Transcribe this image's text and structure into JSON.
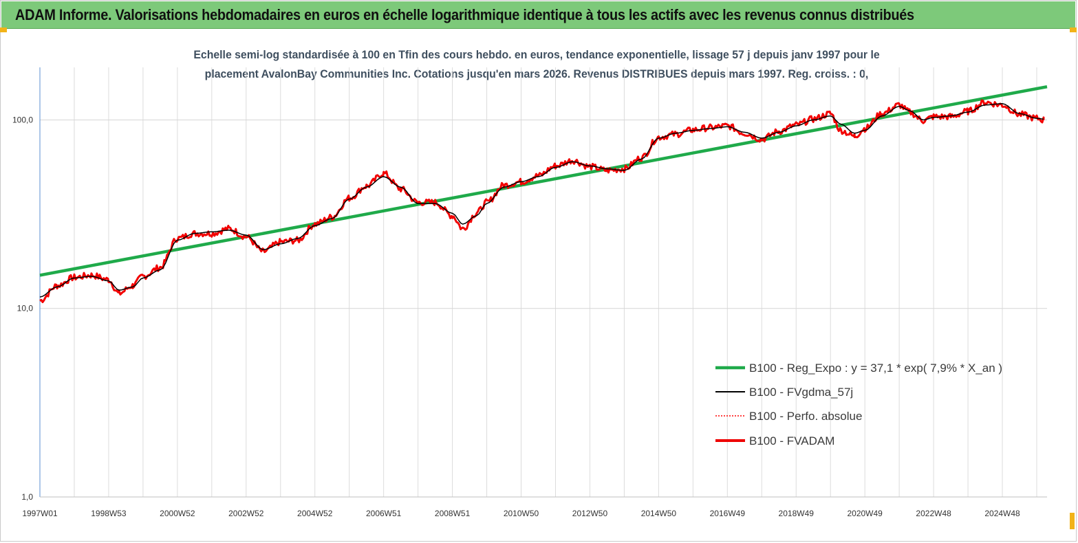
{
  "banner": {
    "title": "ADAM Informe. Valorisations hebdomadaires en euros en échelle logarithmique identique à tous les actifs avec les revenus connus distribués",
    "color": "#7dc97a"
  },
  "chart_data": {
    "type": "line",
    "title_line1": "Echelle semi-log standardisée à 100 en Tfin des cours hebdo. en euros, tendance exponentielle, lissage 57 j depuis janv 1997 pour le",
    "title_line2": "placement AvalonBay Communities Inc. Cotations jusqu'en mars 2026. Revenus DISTRIBUES depuis mars 1997. Reg. croiss. : 0,",
    "yscale": "log",
    "ylim": [
      1,
      190
    ],
    "y_ticks": [
      1,
      10,
      100
    ],
    "y_tick_labels": [
      "1,0",
      "10,0",
      "100,0"
    ],
    "xlim": [
      1997.0,
      2026.3
    ],
    "x_ticks": [
      1997.0,
      1999.0,
      2001.0,
      2003.0,
      2005.0,
      2007.0,
      2009.0,
      2011.0,
      2013.0,
      2015.0,
      2017.0,
      2019.0,
      2021.0,
      2023.0,
      2025.0
    ],
    "x_tick_labels": [
      "1997W01",
      "1998W53",
      "2000W52",
      "2002W52",
      "2004W52",
      "2006W51",
      "2008W51",
      "2010W50",
      "2012W50",
      "2014W50",
      "2016W49",
      "2018W49",
      "2020W49",
      "2022W48",
      "2024W48"
    ],
    "grid": true,
    "legend_position": "bottom-right",
    "series": [
      {
        "name": "B100 - Reg_Expo : y = 37,1 *  exp( 7,9% *  X_an )",
        "color": "#1faa4a",
        "style": "thick",
        "x": [
          1997.0,
          2026.3
        ],
        "values": [
          15.0,
          150.0
        ]
      },
      {
        "name": "B100 - FVgdma_57j",
        "color": "#000000",
        "style": "thin",
        "x": [
          1997.0,
          1997.5,
          1998.0,
          1998.5,
          1999.0,
          1999.3,
          1999.7,
          2000.0,
          2000.5,
          2001.0,
          2001.5,
          2002.0,
          2002.5,
          2003.0,
          2003.5,
          2004.0,
          2004.5,
          2005.0,
          2005.5,
          2006.0,
          2006.5,
          2007.0,
          2007.5,
          2008.0,
          2008.5,
          2009.0,
          2009.3,
          2009.7,
          2010.0,
          2010.5,
          2011.0,
          2011.5,
          2012.0,
          2012.5,
          2013.0,
          2013.5,
          2014.0,
          2014.5,
          2015.0,
          2015.5,
          2016.0,
          2016.5,
          2017.0,
          2017.5,
          2018.0,
          2018.5,
          2019.0,
          2019.5,
          2020.0,
          2020.3,
          2020.7,
          2021.0,
          2021.5,
          2022.0,
          2022.3,
          2022.7,
          2023.0,
          2023.5,
          2024.0,
          2024.5,
          2025.0,
          2025.5,
          2026.0,
          2026.2
        ],
        "values": [
          11.5,
          13.0,
          14.5,
          14.8,
          14.0,
          12.5,
          13.0,
          14.5,
          16.0,
          23.0,
          25.0,
          25.5,
          26.0,
          24.5,
          20.5,
          22.0,
          23.5,
          27.5,
          30.0,
          38.0,
          44.0,
          50.0,
          44.0,
          36.0,
          36.0,
          32.0,
          28.0,
          31.0,
          36.0,
          44.0,
          47.0,
          50.0,
          56.0,
          60.0,
          57.0,
          55.0,
          54.0,
          62.0,
          80.0,
          85.0,
          88.0,
          90.0,
          92.0,
          86.0,
          80.0,
          86.0,
          93.0,
          100.0,
          105.0,
          95.0,
          85.0,
          88.0,
          105.0,
          118.0,
          112.0,
          100.0,
          103.0,
          105.0,
          110.0,
          120.0,
          122.0,
          108.0,
          102.0,
          101.0
        ]
      },
      {
        "name": "B100 - Perfo. absolue",
        "color": "#ff0000",
        "style": "dotted",
        "x": [
          1997.0,
          1997.5,
          1998.0,
          1998.5,
          1999.0,
          1999.3,
          1999.7,
          2000.0,
          2000.5,
          2001.0,
          2001.5,
          2002.0,
          2002.5,
          2003.0,
          2003.5,
          2004.0,
          2004.5,
          2005.0,
          2005.5,
          2006.0,
          2006.5,
          2007.0,
          2007.5,
          2008.0,
          2008.5,
          2009.0,
          2009.3,
          2009.7,
          2010.0,
          2010.5,
          2011.0,
          2011.5,
          2012.0,
          2012.5,
          2013.0,
          2013.5,
          2014.0,
          2014.5,
          2015.0,
          2015.5,
          2016.0,
          2016.5,
          2017.0,
          2017.5,
          2018.0,
          2018.5,
          2019.0,
          2019.5,
          2020.0,
          2020.3,
          2020.7,
          2021.0,
          2021.5,
          2022.0,
          2022.3,
          2022.7,
          2023.0,
          2023.5,
          2024.0,
          2024.5,
          2025.0,
          2025.5,
          2026.0,
          2026.2
        ],
        "values": [
          11.0,
          13.2,
          14.6,
          15.0,
          14.2,
          12.0,
          13.2,
          14.8,
          16.5,
          23.5,
          25.0,
          25.0,
          26.5,
          24.0,
          20.0,
          22.5,
          23.0,
          28.0,
          30.5,
          38.5,
          44.5,
          52.0,
          43.0,
          36.5,
          36.5,
          31.0,
          26.5,
          32.0,
          36.5,
          45.0,
          47.0,
          50.5,
          57.0,
          61.0,
          56.5,
          54.0,
          55.0,
          63.0,
          81.0,
          84.0,
          88.5,
          91.0,
          93.0,
          85.0,
          79.0,
          87.0,
          94.0,
          101.0,
          108.0,
          88.0,
          82.0,
          90.0,
          108.0,
          120.0,
          110.0,
          99.0,
          104.0,
          104.0,
          111.0,
          124.0,
          120.0,
          107.0,
          102.0,
          100.0
        ]
      },
      {
        "name": "B100 - FVADAM",
        "color": "#ee0000",
        "style": "thick",
        "x": [
          1997.0,
          1997.5,
          1998.0,
          1998.5,
          1999.0,
          1999.3,
          1999.7,
          2000.0,
          2000.5,
          2001.0,
          2001.5,
          2002.0,
          2002.5,
          2003.0,
          2003.5,
          2004.0,
          2004.5,
          2005.0,
          2005.5,
          2006.0,
          2006.5,
          2007.0,
          2007.5,
          2008.0,
          2008.5,
          2009.0,
          2009.3,
          2009.7,
          2010.0,
          2010.5,
          2011.0,
          2011.5,
          2012.0,
          2012.5,
          2013.0,
          2013.5,
          2014.0,
          2014.5,
          2015.0,
          2015.5,
          2016.0,
          2016.5,
          2017.0,
          2017.5,
          2018.0,
          2018.5,
          2019.0,
          2019.5,
          2020.0,
          2020.3,
          2020.7,
          2021.0,
          2021.5,
          2022.0,
          2022.3,
          2022.7,
          2023.0,
          2023.5,
          2024.0,
          2024.5,
          2025.0,
          2025.5,
          2026.0,
          2026.2
        ],
        "values": [
          11.0,
          13.2,
          14.6,
          15.0,
          14.2,
          12.0,
          13.2,
          14.8,
          16.5,
          23.5,
          25.0,
          25.0,
          26.5,
          24.0,
          20.0,
          22.5,
          23.0,
          28.0,
          30.5,
          38.5,
          44.5,
          52.0,
          43.0,
          36.5,
          36.5,
          31.0,
          26.5,
          32.0,
          36.5,
          45.0,
          47.0,
          50.5,
          57.0,
          61.0,
          56.5,
          54.0,
          55.0,
          63.0,
          81.0,
          84.0,
          88.5,
          91.0,
          93.0,
          85.0,
          79.0,
          87.0,
          94.0,
          101.0,
          108.0,
          88.0,
          82.0,
          90.0,
          108.0,
          120.0,
          110.0,
          99.0,
          104.0,
          104.0,
          111.0,
          124.0,
          120.0,
          107.0,
          102.0,
          100.0
        ]
      }
    ]
  }
}
